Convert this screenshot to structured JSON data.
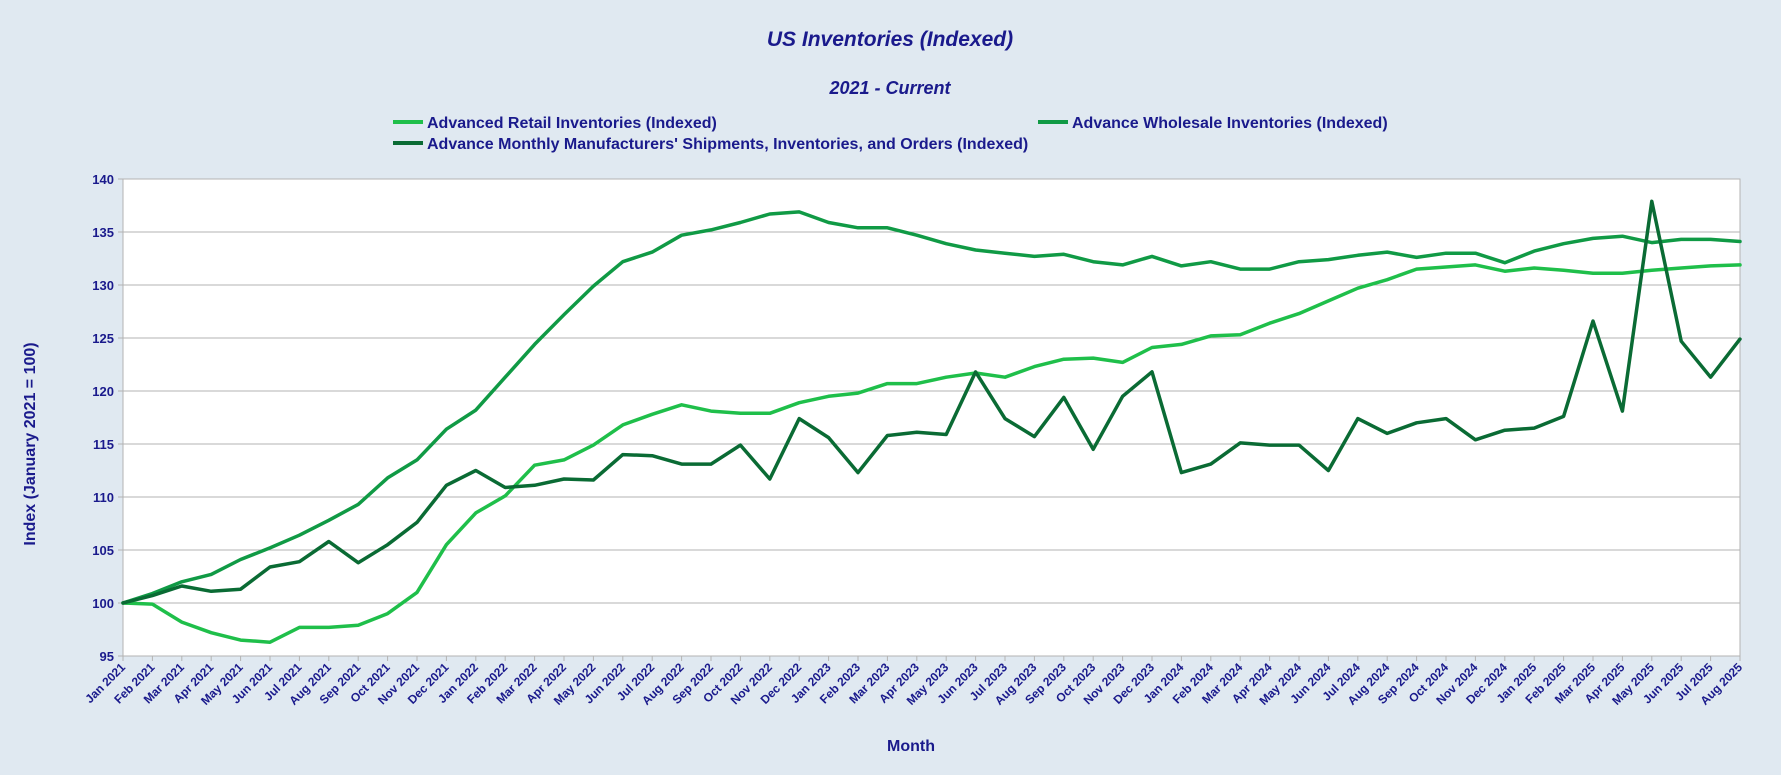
{
  "chart_data": {
    "type": "line",
    "title": "US Inventories (Indexed)",
    "subtitle": "2021 - Current",
    "xlabel": "Month",
    "ylabel": "Index (January 2021 = 100)",
    "ylim": [
      95,
      140
    ],
    "yticks": [
      95,
      100,
      105,
      110,
      115,
      120,
      125,
      130,
      135,
      140
    ],
    "grid": true,
    "legend_position": "top",
    "categories": [
      "Jan 2021",
      "Feb 2021",
      "Mar 2021",
      "Apr 2021",
      "May 2021",
      "Jun 2021",
      "Jul 2021",
      "Aug 2021",
      "Sep 2021",
      "Oct 2021",
      "Nov 2021",
      "Dec 2021",
      "Jan 2022",
      "Feb 2022",
      "Mar 2022",
      "Apr 2022",
      "May 2022",
      "Jun 2022",
      "Jul 2022",
      "Aug 2022",
      "Sep 2022",
      "Oct 2022",
      "Nov 2022",
      "Dec 2022",
      "Jan 2023",
      "Feb 2023",
      "Mar 2023",
      "Apr 2023",
      "May 2023",
      "Jun 2023",
      "Jul 2023",
      "Aug 2023",
      "Sep 2023",
      "Oct 2023",
      "Nov 2023",
      "Dec 2023",
      "Jan 2024",
      "Feb 2024",
      "Mar 2024",
      "Apr 2024",
      "May 2024",
      "Jun 2024",
      "Jul 2024",
      "Aug 2024",
      "Sep 2024",
      "Oct 2024",
      "Nov 2024",
      "Dec 2024",
      "Jan 2025",
      "Feb 2025",
      "Mar 2025",
      "Apr 2025",
      "May 2025",
      "Jun 2025",
      "Jul 2025",
      "Aug 2025"
    ],
    "series": [
      {
        "name": "Advanced Retail Inventories (Indexed)",
        "color": "#1fbf4a",
        "values": [
          100.0,
          99.9,
          98.2,
          97.2,
          96.5,
          96.3,
          97.7,
          97.7,
          97.9,
          99.0,
          101.0,
          105.5,
          108.5,
          110.1,
          113.0,
          113.5,
          114.9,
          116.8,
          117.8,
          118.7,
          118.1,
          117.9,
          117.9,
          118.9,
          119.5,
          119.8,
          120.7,
          120.7,
          121.3,
          121.7,
          121.3,
          122.3,
          123.0,
          123.1,
          122.7,
          124.1,
          124.4,
          125.2,
          125.3,
          126.4,
          127.3,
          128.5,
          129.7,
          130.5,
          131.5,
          131.7,
          131.9,
          131.3,
          131.6,
          131.4,
          131.1,
          131.1,
          131.4,
          131.6,
          131.8,
          131.9
        ]
      },
      {
        "name": "Advance Wholesale Inventories (Indexed)",
        "color": "#109a45",
        "values": [
          100.0,
          100.9,
          102.0,
          102.7,
          104.1,
          105.2,
          106.4,
          107.8,
          109.3,
          111.8,
          113.5,
          116.4,
          118.2,
          121.3,
          124.4,
          127.2,
          129.9,
          132.2,
          133.1,
          134.7,
          135.2,
          135.9,
          136.7,
          136.9,
          135.9,
          135.4,
          135.4,
          134.7,
          133.9,
          133.3,
          133.0,
          132.7,
          132.9,
          132.2,
          131.9,
          132.7,
          131.8,
          132.2,
          131.5,
          131.5,
          132.2,
          132.4,
          132.8,
          133.1,
          132.6,
          133.0,
          133.0,
          132.1,
          133.2,
          133.9,
          134.4,
          134.6,
          134.0,
          134.3,
          134.3,
          134.1
        ]
      },
      {
        "name": "Advance Monthly Manufacturers' Shipments, Inventories, and Orders (Indexed)",
        "color": "#0a6b34",
        "values": [
          100.0,
          100.7,
          101.6,
          101.1,
          101.3,
          103.4,
          103.9,
          105.8,
          103.8,
          105.5,
          107.6,
          111.1,
          112.5,
          110.9,
          111.1,
          111.7,
          111.6,
          114.0,
          113.9,
          113.1,
          113.1,
          114.9,
          111.7,
          117.4,
          115.6,
          112.3,
          115.8,
          116.1,
          115.9,
          121.8,
          117.4,
          115.7,
          119.4,
          114.5,
          119.5,
          121.8,
          112.3,
          113.1,
          115.1,
          114.9,
          114.9,
          112.5,
          117.4,
          116.0,
          117.0,
          117.4,
          115.4,
          116.3,
          116.5,
          117.6,
          126.6,
          118.1,
          137.9,
          124.7,
          121.3,
          124.9
        ]
      }
    ]
  }
}
